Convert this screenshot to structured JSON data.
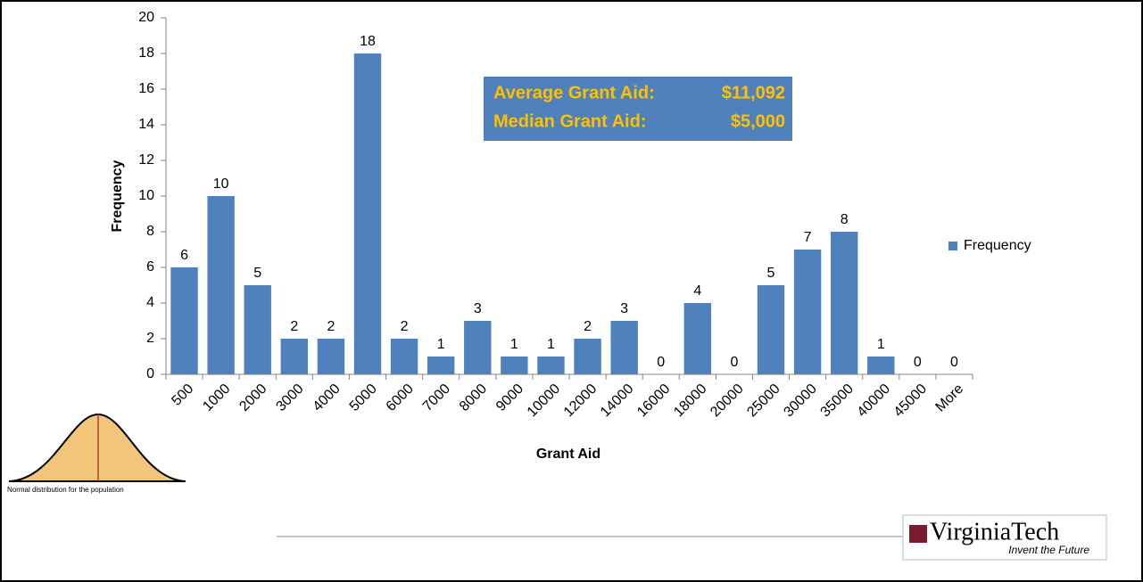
{
  "chart_data": {
    "type": "bar",
    "x_label": "Grant Aid",
    "y_label": "Frequency",
    "categories": [
      "500",
      "1000",
      "2000",
      "3000",
      "4000",
      "5000",
      "6000",
      "7000",
      "8000",
      "9000",
      "10000",
      "12000",
      "14000",
      "16000",
      "18000",
      "20000",
      "25000",
      "30000",
      "35000",
      "40000",
      "45000",
      "More"
    ],
    "series": [
      {
        "name": "Frequency",
        "color": "#4f81bd",
        "values": [
          6,
          10,
          5,
          2,
          2,
          18,
          2,
          1,
          3,
          1,
          1,
          2,
          3,
          0,
          4,
          0,
          5,
          7,
          8,
          1,
          0,
          0
        ]
      }
    ],
    "ylim": [
      0,
      20
    ],
    "yticks": [
      0,
      2,
      4,
      6,
      8,
      10,
      12,
      14,
      16,
      18,
      20
    ],
    "data_labels": true,
    "legend": "right",
    "annotations": [
      {
        "label": "Average Grant Aid:",
        "value": "$11,092"
      },
      {
        "label": "Median Grant Aid:",
        "value": "$5,000"
      }
    ]
  },
  "inset": {
    "caption": "Normal distribution for the population"
  },
  "logo": {
    "name": "VirginiaTech",
    "tagline": "Invent the Future"
  }
}
